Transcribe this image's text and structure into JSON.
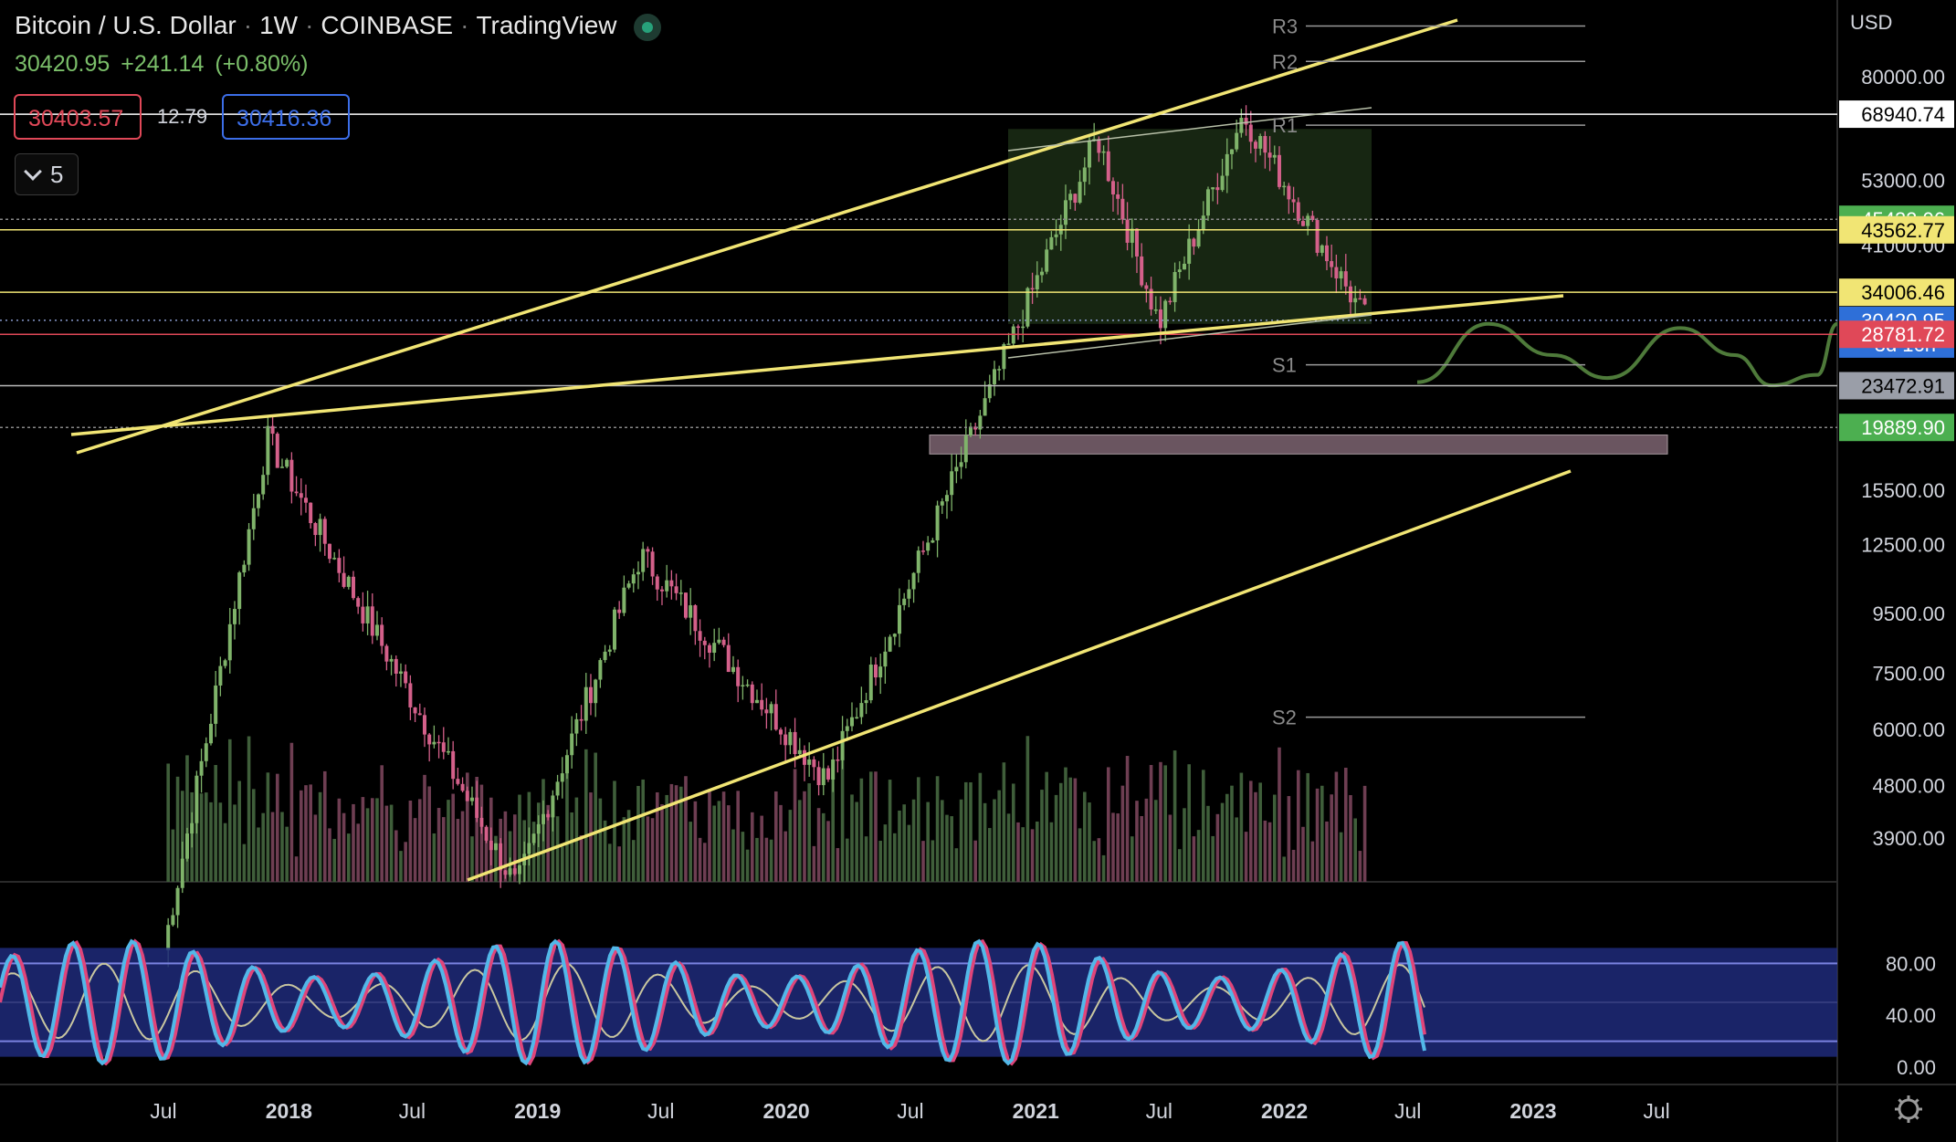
{
  "header": {
    "symbol": "Bitcoin / U.S. Dollar",
    "interval": "1W",
    "exchange": "COINBASE",
    "source": "TradingView",
    "last": "30420.95",
    "change": "+241.14",
    "change_pct": "(+0.80%)"
  },
  "order_panel": {
    "sell": "30403.57",
    "spread": "12.79",
    "buy": "30416.36"
  },
  "indicators_toggle": {
    "count": "5"
  },
  "axis_currency": "USD",
  "colors": {
    "bg": "#000000",
    "up": "#7fb36a",
    "down": "#d4608a",
    "trendline": "#f1e574",
    "stoch_k": "#52b8e8",
    "stoch_d": "#e0457a",
    "rsi": "#c9c7a0",
    "band": "#1e2a7a"
  },
  "chart_data": {
    "type": "candlestick",
    "interval": "1W",
    "scale": "log",
    "y_ticks": [
      "80000.00",
      "53000.00",
      "41000.00",
      "15500.00",
      "12500.00",
      "9500.00",
      "7500.00",
      "6000.00",
      "4800.00",
      "3900.00"
    ],
    "x_ticks": [
      "Jul",
      "2018",
      "Jul",
      "2019",
      "Jul",
      "2020",
      "Jul",
      "2021",
      "Jul",
      "2022",
      "Jul",
      "2023",
      "Jul"
    ],
    "price_labels": [
      {
        "value": "68940.74",
        "bg": "#ffffff",
        "fg": "#000000"
      },
      {
        "value": "45432.06",
        "bg": "#4caf50",
        "fg": "#ffffff"
      },
      {
        "value": "43562.77",
        "bg": "#f1e574",
        "fg": "#000000"
      },
      {
        "value": "34006.46",
        "bg": "#f1e574",
        "fg": "#000000"
      },
      {
        "value": "30420.95",
        "bg": "#2e6fd8",
        "fg": "#ffffff",
        "sub": "3d 16h"
      },
      {
        "value": "28781.72",
        "bg": "#e04858",
        "fg": "#ffffff"
      },
      {
        "value": "23472.91",
        "bg": "#9a9ea8",
        "fg": "#000000"
      },
      {
        "value": "19889.90",
        "bg": "#4caf50",
        "fg": "#ffffff"
      }
    ],
    "pivots": [
      "R3",
      "R2",
      "R1",
      "S1",
      "S2"
    ],
    "key_points": [
      {
        "date": "2017-12",
        "close": 19000
      },
      {
        "date": "2018-12",
        "close": 3200
      },
      {
        "date": "2019-06",
        "close": 12000
      },
      {
        "date": "2020-03",
        "close": 4900
      },
      {
        "date": "2021-04",
        "close": 63000
      },
      {
        "date": "2021-07",
        "close": 30000
      },
      {
        "date": "2021-11",
        "close": 68940
      },
      {
        "date": "2022-05",
        "close": 30420
      }
    ],
    "oscillator": {
      "type": "stoch_rsi",
      "y_ticks": [
        "80.00",
        "40.00",
        "0.00"
      ],
      "overbought": 80,
      "oversold": 20
    }
  }
}
